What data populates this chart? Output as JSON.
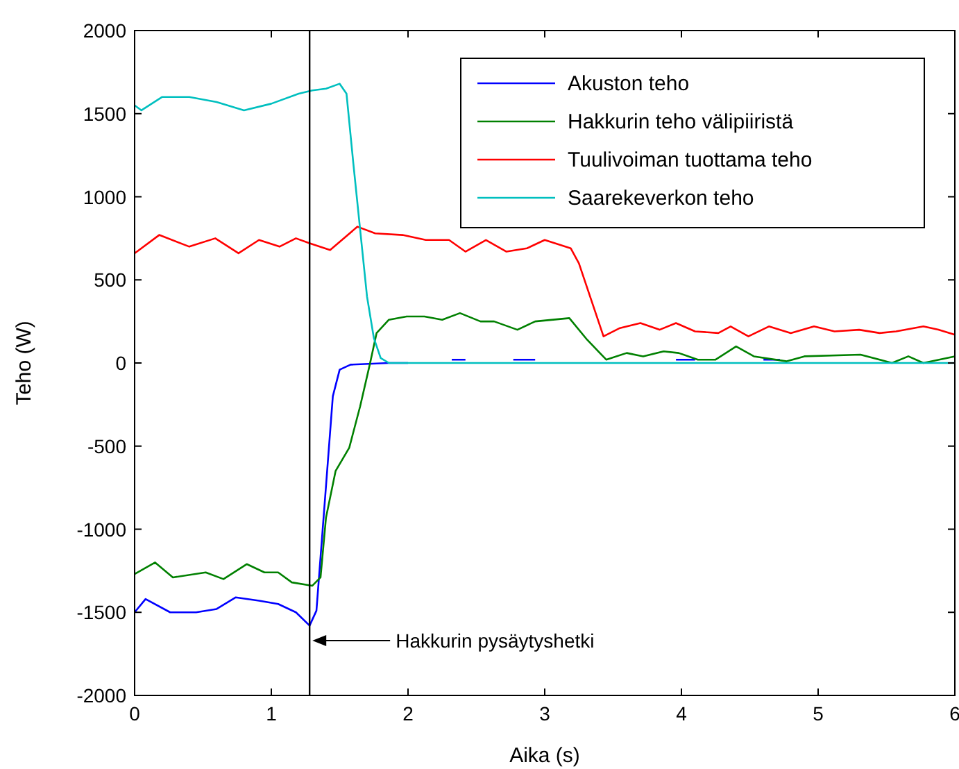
{
  "chart_data": {
    "type": "line",
    "xlabel": "Aika (s)",
    "ylabel": "Teho (W)",
    "xlim": [
      0,
      6
    ],
    "ylim": [
      -2000,
      2000
    ],
    "xticks": [
      0,
      1,
      2,
      3,
      4,
      5,
      6
    ],
    "yticks": [
      -2000,
      -1500,
      -1000,
      -500,
      0,
      500,
      1000,
      1500,
      2000
    ],
    "grid": false,
    "legend": "top right",
    "marker": "none",
    "line_style": "solid",
    "series": [
      {
        "name": "Akuston teho",
        "color": "#0000ff",
        "x": [
          0,
          0.08,
          0.26,
          0.45,
          0.6,
          0.74,
          0.91,
          1.05,
          1.18,
          1.28,
          1.33,
          1.4,
          1.45,
          1.5,
          1.58,
          1.86,
          2.0,
          2.3,
          2.32,
          2.42,
          2.44,
          2.75,
          2.77,
          2.93,
          2.95,
          3.94,
          3.96,
          4.1,
          4.12,
          4.58,
          4.6,
          4.72
        ],
        "values": [
          -1500,
          -1420,
          -1500,
          -1500,
          -1480,
          -1410,
          -1430,
          -1450,
          -1500,
          -1580,
          -1490,
          -740,
          -200,
          -40,
          -10,
          0,
          0,
          null,
          20,
          20,
          null,
          null,
          20,
          20,
          null,
          null,
          20,
          20,
          null,
          null,
          20,
          20
        ]
      },
      {
        "name": "Hakkurin teho välipiiristä",
        "color": "#008000",
        "x": [
          0,
          0.15,
          0.28,
          0.52,
          0.65,
          0.82,
          0.95,
          1.05,
          1.15,
          1.3,
          1.36,
          1.4,
          1.47,
          1.57,
          1.65,
          1.72,
          1.77,
          1.86,
          1.99,
          2.12,
          2.25,
          2.38,
          2.53,
          2.63,
          2.8,
          2.93,
          3.18,
          3.31,
          3.45,
          3.6,
          3.72,
          3.87,
          3.98,
          4.12,
          4.25,
          4.4,
          4.53,
          4.77,
          4.9,
          5.31,
          5.54,
          5.66,
          5.77,
          6
        ],
        "values": [
          -1270,
          -1200,
          -1290,
          -1260,
          -1300,
          -1210,
          -1260,
          -1260,
          -1320,
          -1340,
          -1290,
          -930,
          -650,
          -510,
          -260,
          -10,
          180,
          260,
          280,
          280,
          260,
          300,
          250,
          250,
          200,
          250,
          270,
          140,
          20,
          60,
          40,
          70,
          60,
          20,
          20,
          100,
          40,
          10,
          40,
          50,
          0,
          40,
          0,
          40
        ]
      },
      {
        "name": "Tuulivoiman tuottama teho",
        "color": "#ff0000",
        "x": [
          0,
          0.18,
          0.4,
          0.59,
          0.76,
          0.91,
          1.06,
          1.18,
          1.28,
          1.43,
          1.63,
          1.76,
          1.96,
          2.13,
          2.3,
          2.42,
          2.57,
          2.72,
          2.87,
          3.0,
          3.19,
          3.25,
          3.43,
          3.55,
          3.7,
          3.84,
          3.96,
          4.1,
          4.27,
          4.36,
          4.49,
          4.64,
          4.8,
          4.97,
          5.12,
          5.3,
          5.45,
          5.57,
          5.77,
          5.88,
          6
        ],
        "values": [
          660,
          770,
          700,
          750,
          660,
          740,
          700,
          750,
          720,
          680,
          820,
          780,
          770,
          740,
          740,
          670,
          740,
          670,
          690,
          740,
          690,
          600,
          160,
          210,
          240,
          200,
          240,
          190,
          180,
          220,
          160,
          220,
          180,
          220,
          190,
          200,
          180,
          190,
          220,
          200,
          170
        ]
      },
      {
        "name": "Saarekeverkon teho",
        "color": "#00bfbf",
        "x": [
          0,
          0.05,
          0.2,
          0.4,
          0.6,
          0.8,
          1.0,
          1.2,
          1.3,
          1.4,
          1.5,
          1.55,
          1.6,
          1.65,
          1.7,
          1.75,
          1.8,
          1.86,
          3,
          4,
          5,
          6
        ],
        "values": [
          1550,
          1520,
          1600,
          1600,
          1570,
          1520,
          1560,
          1620,
          1640,
          1650,
          1680,
          1620,
          1200,
          800,
          400,
          150,
          30,
          0,
          0,
          0,
          0,
          0
        ]
      }
    ],
    "ref_lines": [
      {
        "axis": "x",
        "value": 1.28,
        "color": "#000000"
      }
    ],
    "annotations": [
      {
        "text": "Hakkurin pysäytyshetki",
        "x": 1.28,
        "y": -1670
      }
    ]
  }
}
